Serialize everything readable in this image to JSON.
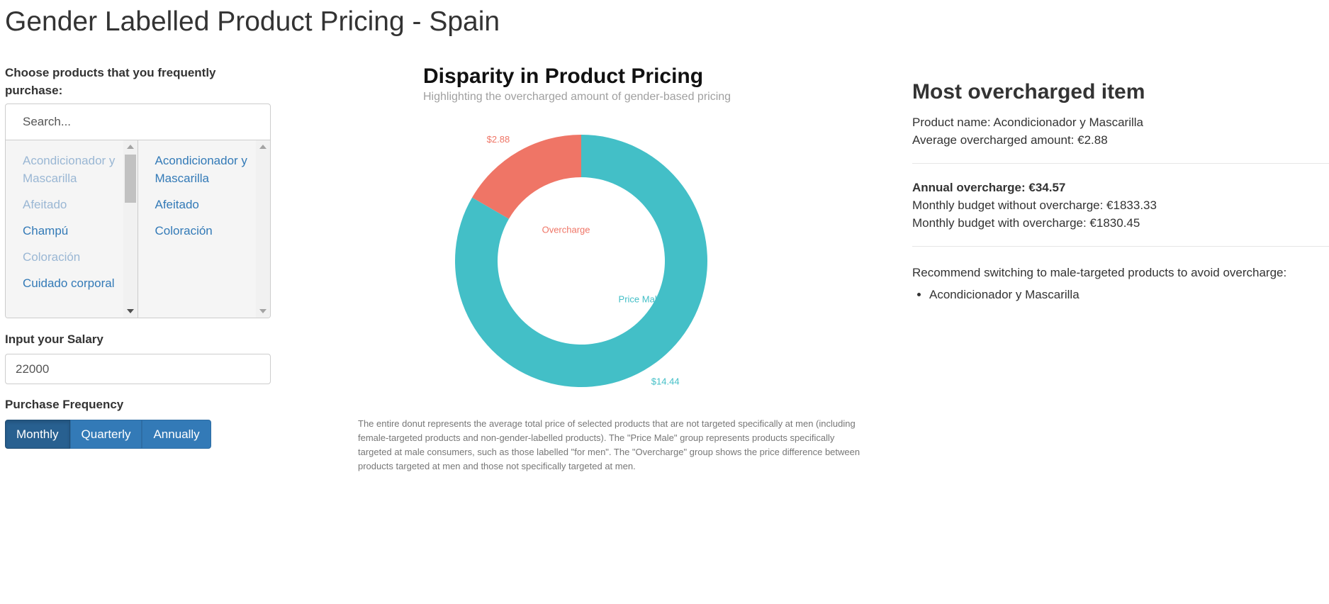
{
  "page": {
    "title": "Gender Labelled Product Pricing - Spain"
  },
  "products": {
    "label": "Choose products that you frequently purchase:",
    "search_placeholder": "Search...",
    "available": [
      {
        "label": "Acondicionador y Mascarilla",
        "selected": true
      },
      {
        "label": "Afeitado",
        "selected": true
      },
      {
        "label": "Champú",
        "selected": false
      },
      {
        "label": "Coloración",
        "selected": true
      },
      {
        "label": "Cuidado corporal",
        "selected": false
      }
    ],
    "selected": [
      "Acondicionador y Mascarilla",
      "Afeitado",
      "Coloración"
    ]
  },
  "salary": {
    "label": "Input your Salary",
    "value": "22000"
  },
  "frequency": {
    "label": "Purchase Frequency",
    "options": [
      "Monthly",
      "Quarterly",
      "Annually"
    ],
    "active": "Monthly"
  },
  "chart_data": {
    "type": "pie",
    "title": "Disparity in Product Pricing",
    "subtitle": "Highlighting the overcharged amount of gender-based pricing",
    "slices": [
      {
        "name": "Overcharge",
        "value": 2.88,
        "value_label": "$2.88",
        "color": "#ef7566"
      },
      {
        "name": "Price Male",
        "value": 14.44,
        "value_label": "$14.44",
        "color": "#43bfc7"
      }
    ],
    "note": "The entire donut represents the average total price of selected products that are not targeted specifically at men (including female-targeted products and non-gender-labelled products). The \"Price Male\" group represents products specifically targeted at male consumers, such as those labelled \"for men\". The \"Overcharge\" group shows the price difference between products targeted at men and those not specifically targeted at men."
  },
  "summary": {
    "heading": "Most overcharged item",
    "product_name": "Product name: Acondicionador y Mascarilla",
    "avg_overcharge": "Average overcharged amount: €2.88",
    "annual_overcharge": "Annual overcharge: €34.57",
    "budget_without": "Monthly budget without overcharge: €1833.33",
    "budget_with": "Monthly budget with overcharge: €1830.45",
    "recommend_text": "Recommend switching to male-targeted products to avoid overcharge:",
    "recommend_items": [
      "Acondicionador y Mascarilla"
    ]
  }
}
